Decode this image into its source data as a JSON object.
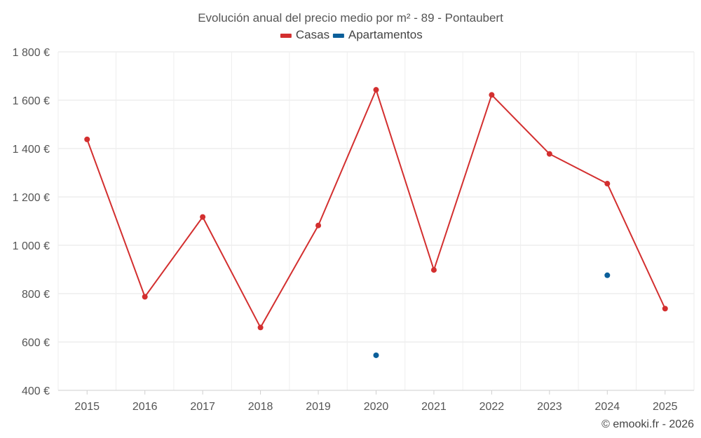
{
  "chart_data": {
    "type": "line",
    "title": "Evolución anual del precio medio por m² - 89 - Pontaubert",
    "categories": [
      "2015",
      "2016",
      "2017",
      "2018",
      "2019",
      "2020",
      "2021",
      "2022",
      "2023",
      "2024",
      "2025"
    ],
    "y_tick_labels": [
      "400 €",
      "600 €",
      "800 €",
      "1 000 €",
      "1 200 €",
      "1 400 €",
      "1 600 €",
      "1 800 €"
    ],
    "y_ticks": [
      400,
      600,
      800,
      1000,
      1200,
      1400,
      1600,
      1800
    ],
    "ylim": [
      400,
      1800
    ],
    "grid": true,
    "legend_position": "top-center",
    "series": [
      {
        "name": "Casas",
        "color": "#d32f2f",
        "values": [
          1438,
          787,
          1117,
          660,
          1082,
          1643,
          898,
          1622,
          1378,
          1255,
          738
        ]
      },
      {
        "name": "Apartamentos",
        "color": "#0b5f9a",
        "values": [
          null,
          null,
          null,
          null,
          null,
          545,
          null,
          null,
          null,
          876,
          null
        ]
      }
    ],
    "credit": "© emooki.fr - 2026"
  }
}
